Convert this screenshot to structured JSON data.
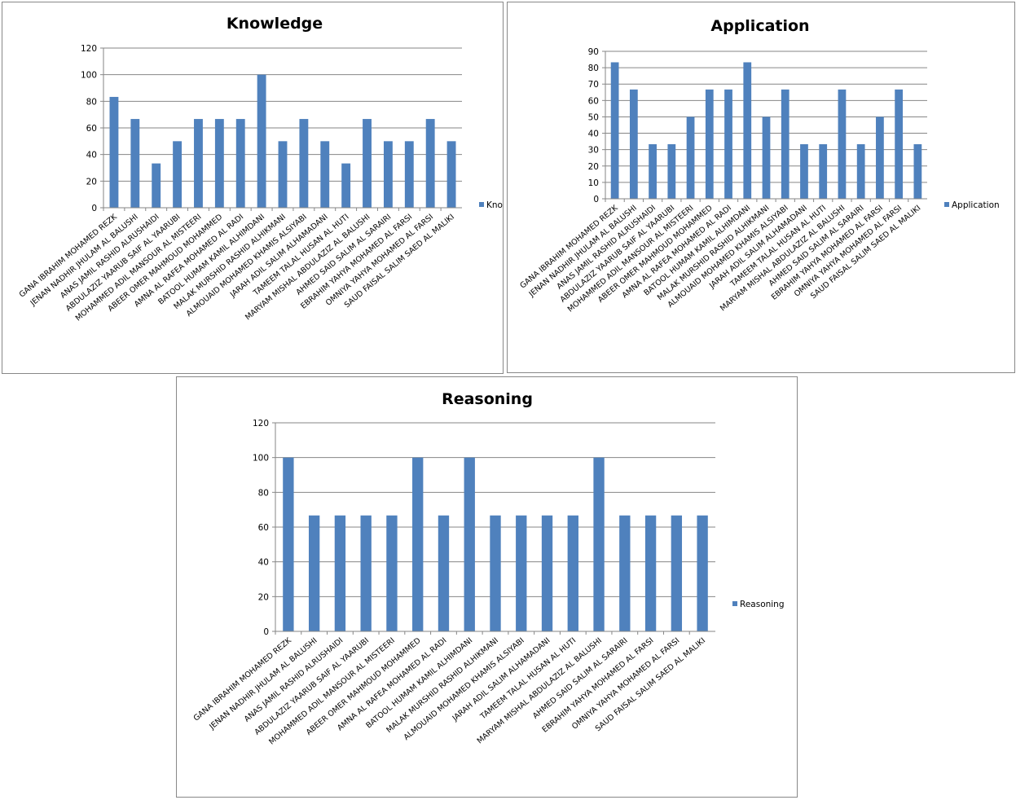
{
  "chart_data": [
    {
      "type": "bar",
      "title": "Knowledge",
      "legend_position": "right",
      "categories": [
        "GANA IBRAHIM MOHAMED REZK",
        "JENAN NADHIR JHULAM AL BALUSHI",
        "ANAS JAMIL RASHID ALRUSHAIDI",
        "ABDULAZIZ YAARUB SAIF AL YAARUBI",
        "MOHAMMED ADIL MANSOUR AL MISTEERI",
        "ABEER OMER MAHMOUD MOHAMMED",
        "AMNA AL RAFEA MOHAMED AL RADI",
        "BATOOL HUMAM KAMIL ALHIMDANI",
        "MALAK MURSHID RASHID ALHIKMANI",
        "ALMOUAID MOHAMED KHAMIS ALSIYABI",
        "JARAH ADIL SALIM ALHAMADANI",
        "TAMEEM TALAL HUSAN AL HUTI",
        "MARYAM MISHAL ABDULAZIZ AL BALUSHI",
        "AHMED SAID SALIM AL SARAIRI",
        "EBRAHIM YAHYA MOHAMED AL FARSI",
        "OMNIYA YAHYA MOHAMED AL FARSI",
        "SAUD FAISAL SALIM SAED AL MALIKI"
      ],
      "series": [
        {
          "name": "Knowledge",
          "color": "#4f81bd",
          "values": [
            83.3,
            66.7,
            33.3,
            50,
            66.7,
            66.7,
            66.7,
            100,
            50,
            66.7,
            50,
            33.3,
            66.7,
            50,
            50,
            66.7,
            50
          ]
        }
      ],
      "ylim": [
        0,
        120
      ],
      "yticks": [
        0,
        20,
        40,
        60,
        80,
        100,
        120
      ],
      "grid": true
    },
    {
      "type": "bar",
      "title": "Application",
      "legend_position": "right",
      "categories": [
        "GANA IBRAHIM MOHAMED REZK",
        "JENAN NADHIR JHULAM AL BALUSHI",
        "ANAS JAMIL RASHID ALRUSHAIDI",
        "ABDULAZIZ YAARUB SAIF AL YAARUBI",
        "MOHAMMED ADIL MANSOUR AL MISTEERI",
        "ABEER OMER MAHMOUD MOHAMMED",
        "AMNA AL RAFEA MOHAMED AL RADI",
        "BATOOL HUMAM KAMIL ALHIMDANI",
        "MALAK MURSHID RASHID ALHIKMANI",
        "ALMOUAID MOHAMED KHAMIS ALSIYABI",
        "JARAH ADIL SALIM ALHAMADANI",
        "TAMEEM TALAL HUSAN AL HUTI",
        "MARYAM MISHAL ABDULAZIZ AL BALUSHI",
        "AHMED SAID SALIM AL SARAIRI",
        "EBRAHIM YAHYA MOHAMED AL FARSI",
        "OMNIYA YAHYA MOHAMED AL FARSI",
        "SAUD FAISAL SALIM SAED AL MALIKI"
      ],
      "series": [
        {
          "name": "Application",
          "color": "#4f81bd",
          "values": [
            83.3,
            66.7,
            33.3,
            33.3,
            50,
            66.7,
            66.7,
            83.3,
            50,
            66.7,
            33.3,
            33.3,
            66.7,
            33.3,
            50,
            66.7,
            33.3
          ]
        }
      ],
      "ylim": [
        0,
        90
      ],
      "yticks": [
        0,
        10,
        20,
        30,
        40,
        50,
        60,
        70,
        80,
        90
      ],
      "grid": true
    },
    {
      "type": "bar",
      "title": "Reasoning",
      "legend_position": "right",
      "categories": [
        "GANA IBRAHIM MOHAMED REZK",
        "JENAN NADHIR JHULAM AL BALUSHI",
        "ANAS JAMIL RASHID ALRUSHAIDI",
        "ABDULAZIZ YAARUB SAIF AL YAARUBI",
        "MOHAMMED ADIL MANSOUR AL MISTEERI",
        "ABEER OMER MAHMOUD MOHAMMED",
        "AMNA AL RAFEA MOHAMED AL RADI",
        "BATOOL HUMAM KAMIL ALHIMDANI",
        "MALAK MURSHID RASHID ALHIKMANI",
        "ALMOUAID MOHAMED KHAMIS ALSIYABI",
        "JARAH ADIL SALIM ALHAMADANI",
        "TAMEEM TALAL HUSAN AL HUTI",
        "MARYAM MISHAL ABDULAZIZ AL BALUSHI",
        "AHMED SAID SALIM AL SARAIRI",
        "EBRAHIM YAHYA MOHAMED AL FARSI",
        "OMNIYA YAHYA MOHAMED AL FARSI",
        "SAUD FAISAL SALIM SAED AL MALIKI"
      ],
      "series": [
        {
          "name": "Reasoning",
          "color": "#4f81bd",
          "values": [
            100,
            66.7,
            66.7,
            66.7,
            66.7,
            100,
            66.7,
            100,
            66.7,
            66.7,
            66.7,
            66.7,
            100,
            66.7,
            66.7,
            66.7,
            66.7
          ]
        }
      ],
      "ylim": [
        0,
        120
      ],
      "yticks": [
        0,
        20,
        40,
        60,
        80,
        100,
        120
      ],
      "grid": true
    }
  ]
}
